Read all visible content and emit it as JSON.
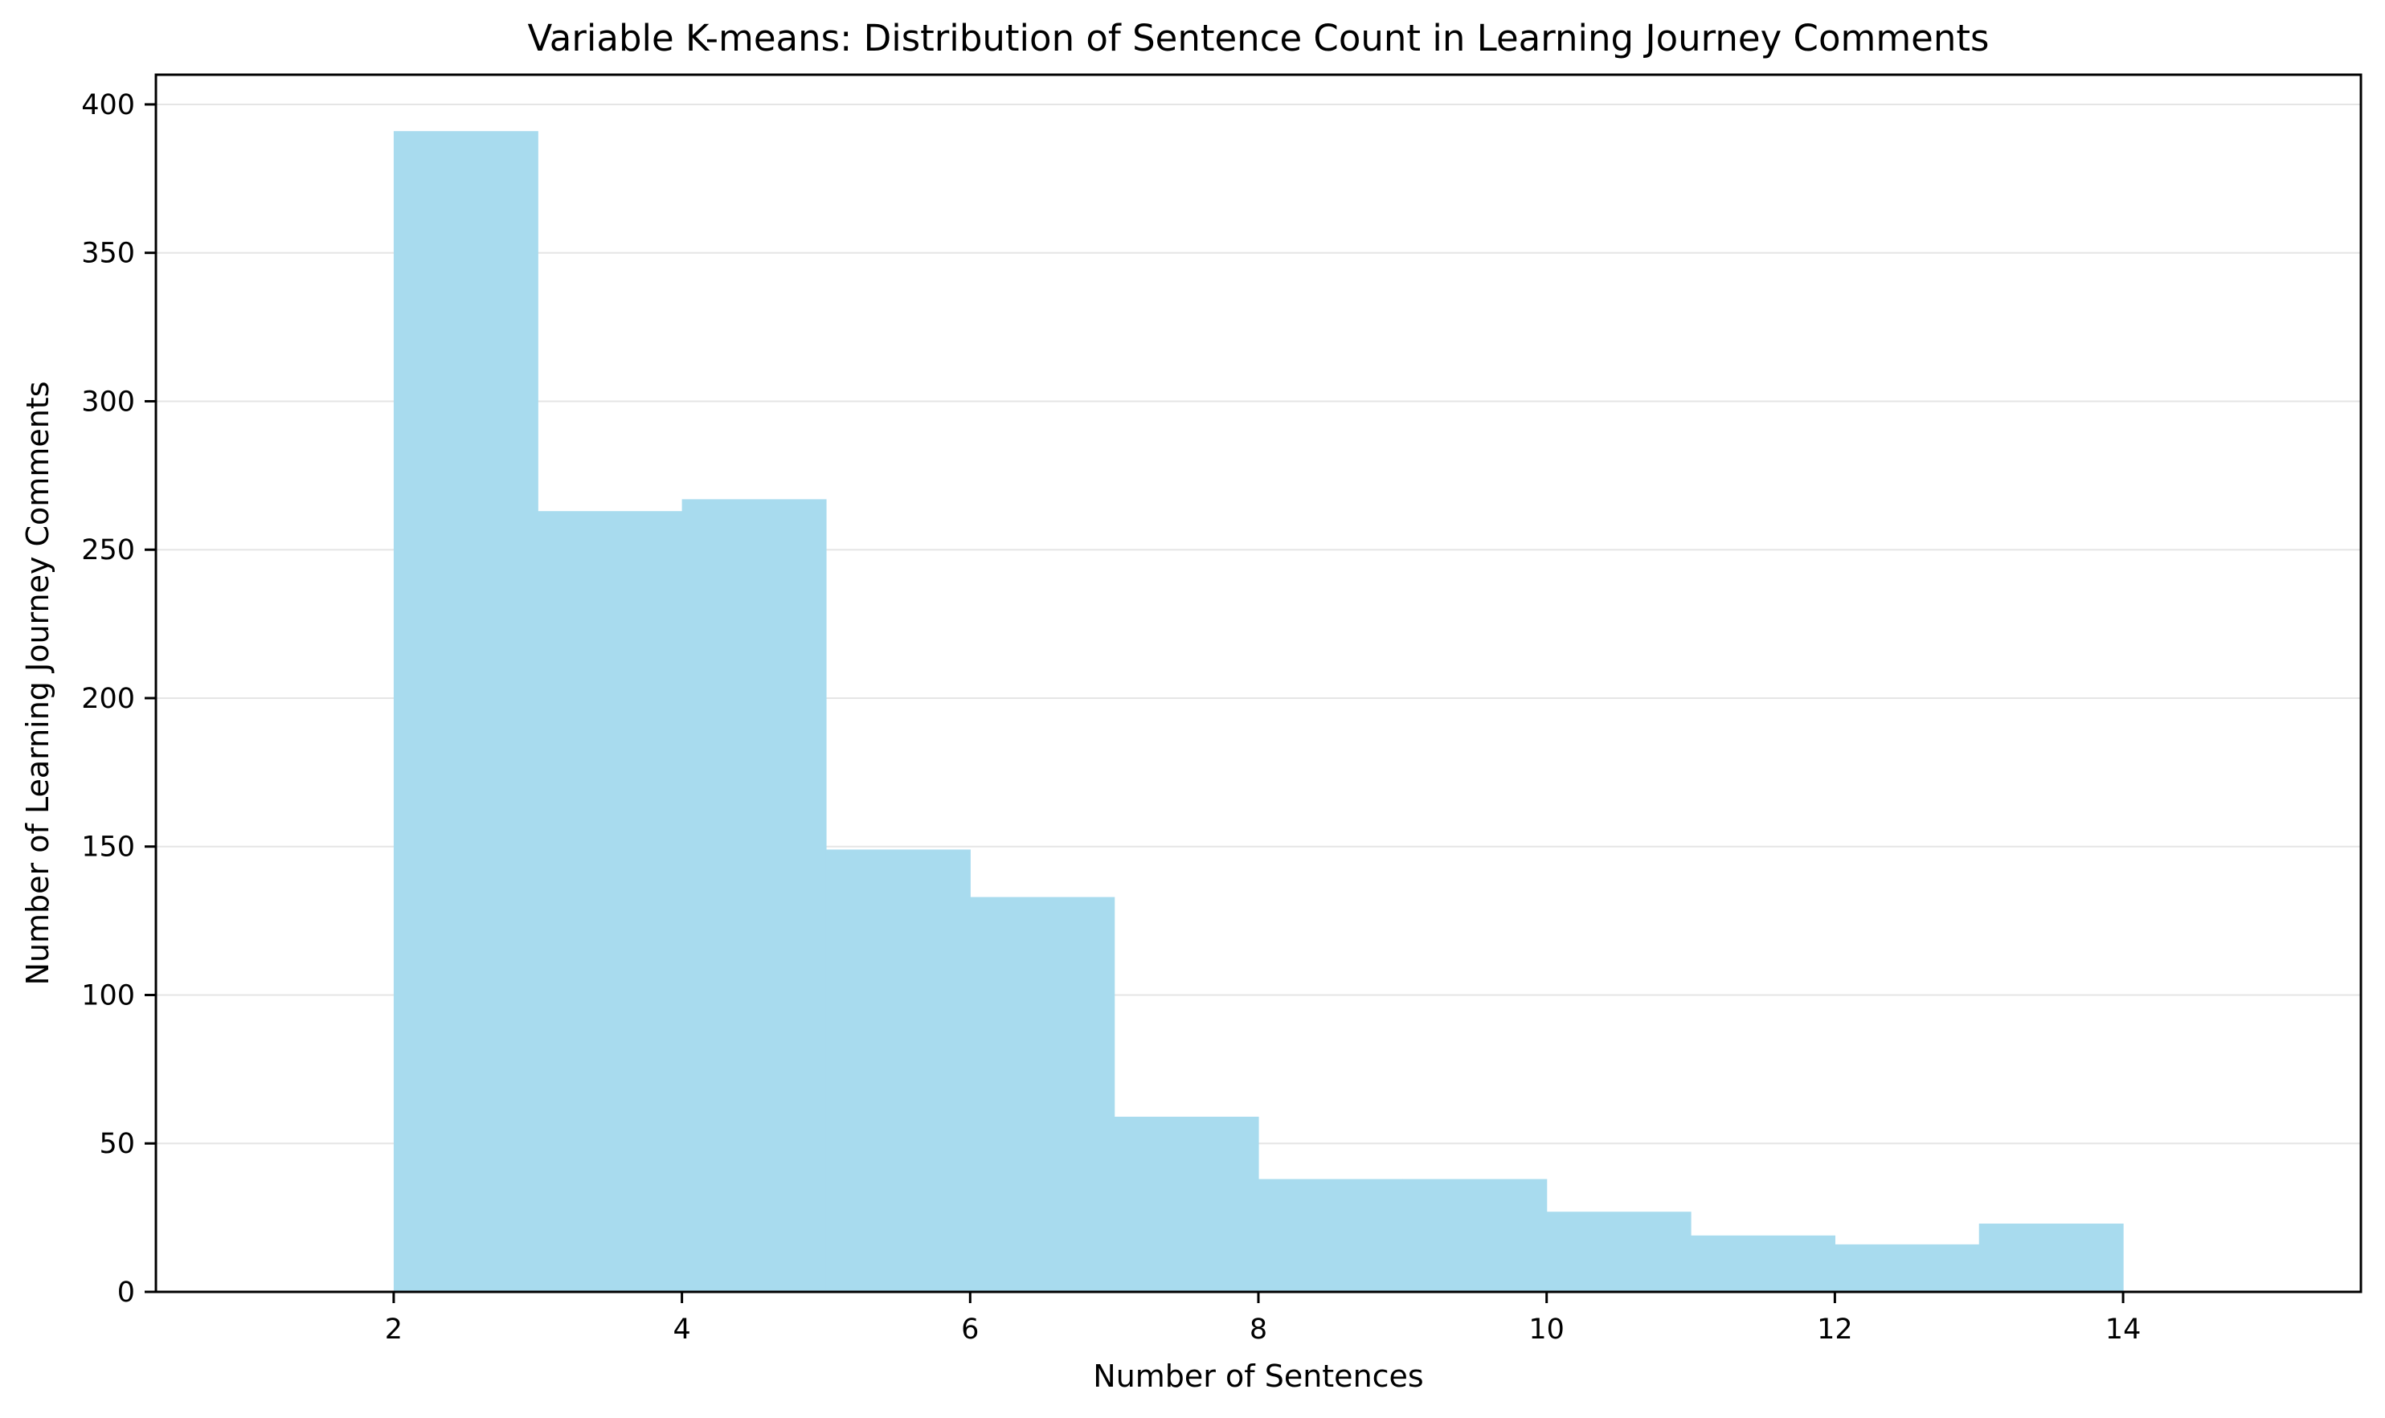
{
  "chart_data": {
    "type": "bar",
    "title": "Variable K-means: Distribution of Sentence Count in Learning Journey Comments",
    "xlabel": "Number of Sentences",
    "ylabel": "Number of Learning Journey Comments",
    "bin_edges": [
      2,
      3,
      4,
      5,
      6,
      7,
      8,
      9,
      10,
      11,
      12,
      13,
      14
    ],
    "values": [
      391,
      263,
      267,
      149,
      133,
      59,
      38,
      38,
      27,
      19,
      16,
      23
    ],
    "xlim": [
      0.35,
      15.65
    ],
    "ylim": [
      0,
      410
    ],
    "x_ticks": [
      2,
      4,
      6,
      8,
      10,
      12,
      14
    ],
    "y_ticks": [
      0,
      50,
      100,
      150,
      200,
      250,
      300,
      350,
      400
    ],
    "bar_color": "#A8DBEE",
    "grid": true,
    "grid_axis": "y",
    "grid_color": "#E5E5E5"
  }
}
